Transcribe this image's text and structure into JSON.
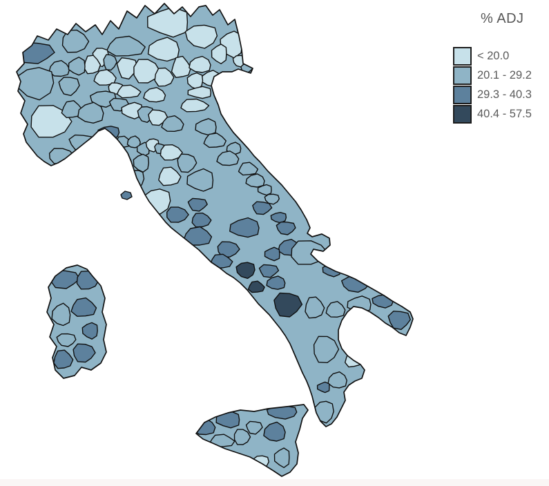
{
  "legend": {
    "title": "% ADJ",
    "classes": [
      {
        "label": "<  20.0",
        "color": "#c7e1ea"
      },
      {
        "label": "20.1 - 29.2",
        "color": "#8fb4c6"
      },
      {
        "label": "29.3 - 40.3",
        "color": "#5d819d"
      },
      {
        "label": "40.4 - 57.5",
        "color": "#33495c"
      }
    ],
    "swatch_border_color": "#1c1c1c",
    "text_color": "#5a5a5a"
  },
  "map": {
    "region": "Italy provinces choropleth",
    "border_color": "#101010",
    "sea_color": "#ffffff",
    "provinces": [
      {
        "name": "bolzano",
        "class": 1
      },
      {
        "name": "belluno",
        "class": 1
      },
      {
        "name": "aosta",
        "class": 3
      },
      {
        "name": "verbania",
        "class": 2
      },
      {
        "name": "sondrio",
        "class": 2
      },
      {
        "name": "trento",
        "class": 1
      },
      {
        "name": "udine",
        "class": 1
      },
      {
        "name": "como",
        "class": 1
      },
      {
        "name": "lecco",
        "class": 2
      },
      {
        "name": "varese",
        "class": 1
      },
      {
        "name": "biella",
        "class": 2
      },
      {
        "name": "novara",
        "class": 2
      },
      {
        "name": "torino",
        "class": 2
      },
      {
        "name": "bergamo",
        "class": 1
      },
      {
        "name": "brescia",
        "class": 1
      },
      {
        "name": "vicenza",
        "class": 1
      },
      {
        "name": "treviso",
        "class": 1
      },
      {
        "name": "pordenone",
        "class": 1
      },
      {
        "name": "gorizia",
        "class": 1
      },
      {
        "name": "trieste",
        "class": 2
      },
      {
        "name": "verona",
        "class": 1
      },
      {
        "name": "milano",
        "class": 1
      },
      {
        "name": "venezia",
        "class": 1
      },
      {
        "name": "padova",
        "class": 1
      },
      {
        "name": "vercelli",
        "class": 2
      },
      {
        "name": "lodi",
        "class": 1
      },
      {
        "name": "cremona",
        "class": 1
      },
      {
        "name": "mantova",
        "class": 1
      },
      {
        "name": "rovigo",
        "class": 1
      },
      {
        "name": "pavia",
        "class": 2
      },
      {
        "name": "piacenza",
        "class": 2
      },
      {
        "name": "cuneo",
        "class": 1
      },
      {
        "name": "asti",
        "class": 2
      },
      {
        "name": "alessandria",
        "class": 2
      },
      {
        "name": "parma",
        "class": 1
      },
      {
        "name": "reggioemilia",
        "class": 2
      },
      {
        "name": "modena",
        "class": 1
      },
      {
        "name": "ferrara",
        "class": 1
      },
      {
        "name": "bologna",
        "class": 2
      },
      {
        "name": "ravenna",
        "class": 2
      },
      {
        "name": "genova",
        "class": 3
      },
      {
        "name": "savona",
        "class": 2
      },
      {
        "name": "imperia",
        "class": 2
      },
      {
        "name": "spezia",
        "class": 2
      },
      {
        "name": "massa",
        "class": 2
      },
      {
        "name": "lucca",
        "class": 2
      },
      {
        "name": "pistoia",
        "class": 1
      },
      {
        "name": "prato",
        "class": 2
      },
      {
        "name": "firenze",
        "class": 1
      },
      {
        "name": "forli",
        "class": 2
      },
      {
        "name": "rimini",
        "class": 2
      },
      {
        "name": "pisa",
        "class": 2
      },
      {
        "name": "livorno",
        "class": 2
      },
      {
        "name": "arezzo",
        "class": 2
      },
      {
        "name": "siena",
        "class": 1
      },
      {
        "name": "pesaro",
        "class": 2
      },
      {
        "name": "perugia",
        "class": 2
      },
      {
        "name": "grosseto",
        "class": 1
      },
      {
        "name": "terni",
        "class": 3
      },
      {
        "name": "viterbo",
        "class": 3
      },
      {
        "name": "ancona",
        "class": 2
      },
      {
        "name": "macerata",
        "class": 2
      },
      {
        "name": "fermo",
        "class": 2
      },
      {
        "name": "ascoli",
        "class": 2
      },
      {
        "name": "teramo",
        "class": 3
      },
      {
        "name": "rieti",
        "class": 3
      },
      {
        "name": "roma",
        "class": 3
      },
      {
        "name": "aquila",
        "class": 3
      },
      {
        "name": "pescara",
        "class": 3
      },
      {
        "name": "chieti",
        "class": 3
      },
      {
        "name": "frosinone",
        "class": 3
      },
      {
        "name": "latina",
        "class": 3
      },
      {
        "name": "campobasso",
        "class": 3
      },
      {
        "name": "isernia",
        "class": 3
      },
      {
        "name": "caserta",
        "class": 4
      },
      {
        "name": "benevento",
        "class": 3
      },
      {
        "name": "foggia",
        "class": 2
      },
      {
        "name": "napoli",
        "class": 4
      },
      {
        "name": "avellino",
        "class": 3
      },
      {
        "name": "barletta",
        "class": 3
      },
      {
        "name": "bari",
        "class": 3
      },
      {
        "name": "salerno",
        "class": 4
      },
      {
        "name": "potenza",
        "class": 2
      },
      {
        "name": "matera",
        "class": 2
      },
      {
        "name": "taranto",
        "class": 2
      },
      {
        "name": "brindisi",
        "class": 3
      },
      {
        "name": "lecce",
        "class": 3
      },
      {
        "name": "cosenza",
        "class": 2
      },
      {
        "name": "crotone",
        "class": 1
      },
      {
        "name": "catanzaro",
        "class": 2
      },
      {
        "name": "vibo",
        "class": 3
      },
      {
        "name": "reggiocalabria",
        "class": 2
      },
      {
        "name": "elba",
        "class": 3
      },
      {
        "name": "sassari",
        "class": 3
      },
      {
        "name": "olbia",
        "class": 3
      },
      {
        "name": "nuoro",
        "class": 3
      },
      {
        "name": "oristano",
        "class": 2
      },
      {
        "name": "ogliastra",
        "class": 3
      },
      {
        "name": "mediocampidano",
        "class": 2
      },
      {
        "name": "cagliari",
        "class": 3
      },
      {
        "name": "carbonia",
        "class": 3
      },
      {
        "name": "trapani",
        "class": 3
      },
      {
        "name": "palermo",
        "class": 3
      },
      {
        "name": "messina",
        "class": 3
      },
      {
        "name": "enna",
        "class": 2
      },
      {
        "name": "caltanissetta",
        "class": 2
      },
      {
        "name": "agrigento",
        "class": 2
      },
      {
        "name": "catania",
        "class": 3
      },
      {
        "name": "siracusa",
        "class": 2
      },
      {
        "name": "ragusa",
        "class": 1
      }
    ]
  },
  "footer": {
    "strip_color": "#faf6f5"
  }
}
